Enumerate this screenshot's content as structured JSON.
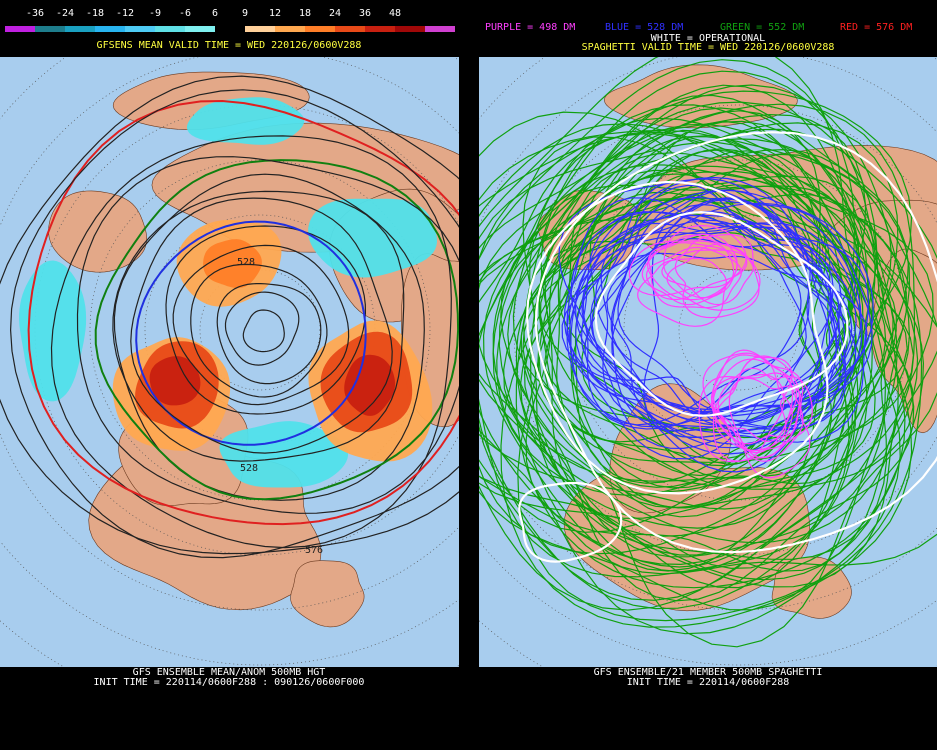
{
  "left": {
    "colorbar": {
      "labels": [
        "-36",
        "-24",
        "-18",
        "-12",
        "-9",
        "-6",
        "6",
        "9",
        "12",
        "18",
        "24",
        "36",
        "48"
      ],
      "colors": [
        "#c020e0",
        "#1e7d8c",
        "#1aa0c0",
        "#28b4f0",
        "#4ecbf5",
        "#5fe0e6",
        "#7ff0f0",
        "#000000",
        "#ffd09a",
        "#ffa850",
        "#ff7e28",
        "#e84a18",
        "#c82010",
        "#a00808",
        "#d040d0"
      ]
    },
    "title": "GFSENS MEAN VALID TIME = WED 220126/0600V288",
    "contour_labels": [
      "528",
      "528",
      "576"
    ],
    "footer": [
      "GFS ENSEMBLE MEAN/ANOM 500MB HGT",
      "INIT TIME = 220114/0600F288 : 090126/0600F000"
    ]
  },
  "right": {
    "legend": [
      {
        "text": "PURPLE = 498 DM",
        "color": "#ff40ff"
      },
      {
        "text": "BLUE = 528 DM",
        "color": "#3030ff"
      },
      {
        "text": "GREEN = 552 DM",
        "color": "#10a010"
      },
      {
        "text": "RED = 576 DM",
        "color": "#ff2020"
      }
    ],
    "title": "SPAGHETTI VALID TIME = WED 220126/0600V288",
    "subtitle": "WHITE = OPERATIONAL",
    "footer": [
      "GFS ENSEMBLE/21 MEMBER 500MB SPAGHETTI",
      "INIT TIME = 220114/0600F288"
    ]
  }
}
